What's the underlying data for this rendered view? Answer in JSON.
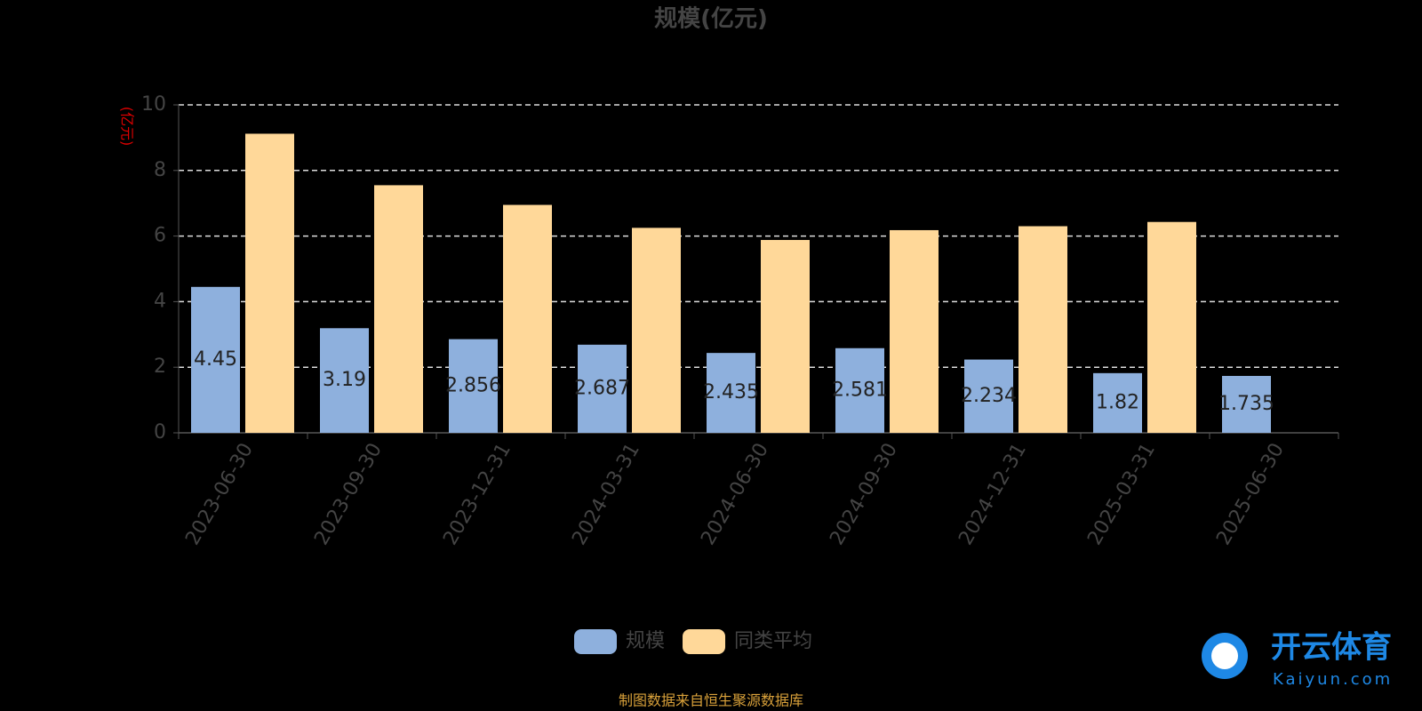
{
  "chart_data": {
    "type": "bar",
    "title": "规模(亿元)",
    "y_label": "(亿元)",
    "categories": [
      "2023-06-30",
      "2023-09-30",
      "2023-12-31",
      "2024-03-31",
      "2024-06-30",
      "2024-09-30",
      "2024-12-31",
      "2025-03-31",
      "2025-06-30"
    ],
    "series": [
      {
        "name": "规模",
        "color": "#8eb0dd",
        "values": [
          4.45,
          3.19,
          2.856,
          2.687,
          2.435,
          2.581,
          2.234,
          1.82,
          1.735
        ],
        "show_labels": true
      },
      {
        "name": "同类平均",
        "color": "#ffd899",
        "values": [
          9.12,
          7.55,
          6.95,
          6.25,
          5.88,
          6.18,
          6.3,
          6.43,
          null
        ]
      }
    ],
    "ylim": [
      0,
      10
    ],
    "yticks": [
      0,
      2,
      4,
      6,
      8,
      10
    ],
    "grid": true,
    "source": "制图数据来自恒生聚源数据库"
  },
  "watermark": {
    "title": "开云体育",
    "subtitle": "Kaiyun.com"
  }
}
